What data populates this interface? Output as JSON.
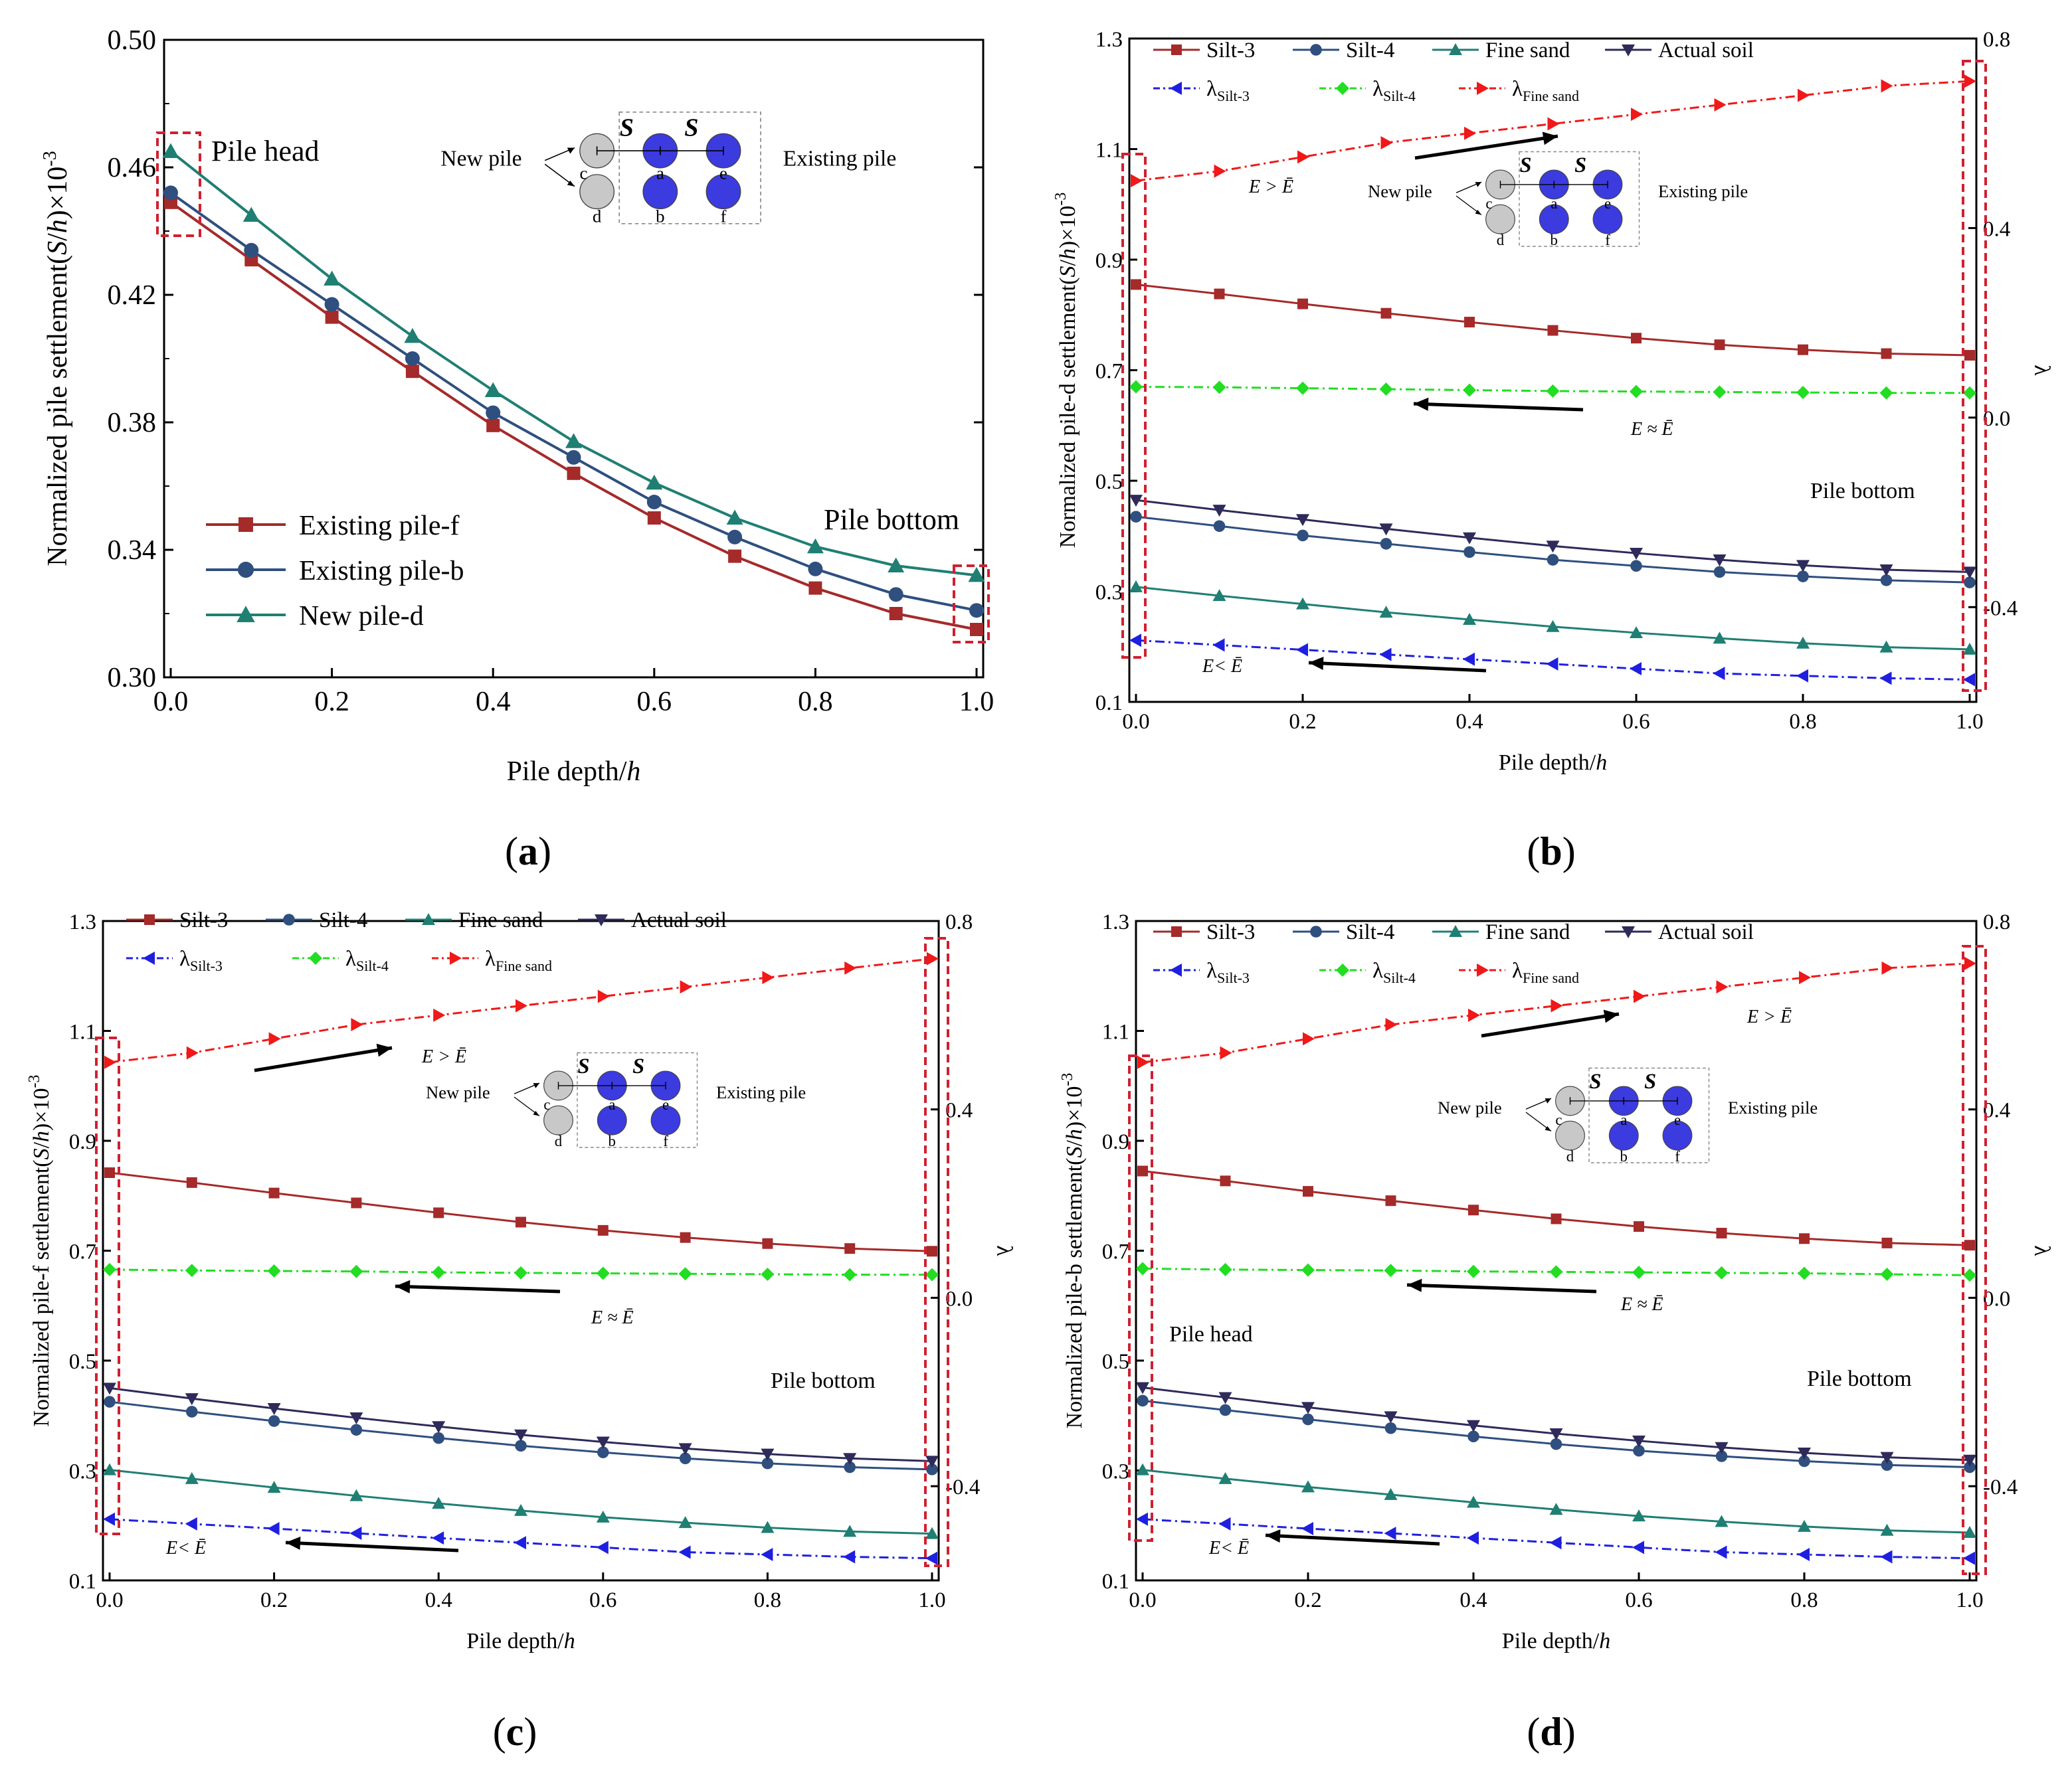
{
  "chart_data": [
    {
      "id": "a",
      "type": "line",
      "caption_letter": "a",
      "xlabel": "Pile depth/",
      "xlabel_italic": "h",
      "ylabel_prefix": "Normalized  pile settlement(",
      "ylabel_S": "S",
      "ylabel_slash": "/",
      "ylabel_h": "h",
      "ylabel_suffix": ")×10",
      "ylabel_exp": "-3",
      "xlim": [
        0,
        1.0
      ],
      "ylim": [
        0.3,
        0.5
      ],
      "xticks": [
        "0.0",
        "0.2",
        "0.4",
        "0.6",
        "0.8",
        "1.0"
      ],
      "yticks": [
        "0.30",
        "0.34",
        "0.38",
        "0.42",
        "0.46",
        "0.50"
      ],
      "x": [
        0,
        0.1,
        0.2,
        0.3,
        0.4,
        0.5,
        0.6,
        0.7,
        0.8,
        0.9,
        1.0
      ],
      "series": [
        {
          "name": "Existing pile-f",
          "color": "#A52A2A",
          "marker": "square",
          "dash": "solid",
          "values": [
            0.449,
            0.431,
            0.413,
            0.396,
            0.379,
            0.364,
            0.35,
            0.338,
            0.328,
            0.32,
            0.315
          ]
        },
        {
          "name": "Existing pile-b",
          "color": "#2F4F7F",
          "marker": "circle",
          "dash": "solid",
          "values": [
            0.452,
            0.434,
            0.417,
            0.4,
            0.383,
            0.369,
            0.355,
            0.344,
            0.334,
            0.326,
            0.321
          ]
        },
        {
          "name": "New pile-d",
          "color": "#1F7F73",
          "marker": "triangle-up",
          "dash": "solid",
          "values": [
            0.465,
            0.445,
            0.425,
            0.407,
            0.39,
            0.374,
            0.361,
            0.35,
            0.341,
            0.335,
            0.332
          ]
        }
      ],
      "annotations": {
        "head": "Pile head",
        "bottom": "Pile bottom"
      },
      "inset": {
        "new_pile": "New pile",
        "existing_pile": "Existing pile",
        "spacing": "S",
        "labels": [
          "c",
          "a",
          "e",
          "d",
          "b",
          "f"
        ]
      }
    },
    {
      "id": "b",
      "type": "line",
      "caption_letter": "b",
      "xlabel": "Pile depth/",
      "xlabel_italic": "h",
      "ylabel_prefix": "Normalized  pile-d settlement(",
      "ylabel_S": "S",
      "ylabel_slash": "/",
      "ylabel_h": "h",
      "ylabel_suffix": ")×10",
      "ylabel_exp": "-3",
      "y2label": "λ",
      "xlim": [
        0,
        1.0
      ],
      "ylim": [
        0.1,
        1.3
      ],
      "y2lim": [
        -0.6,
        0.8
      ],
      "xticks": [
        "0.0",
        "0.2",
        "0.4",
        "0.6",
        "0.8",
        "1.0"
      ],
      "yticks": [
        "0.1",
        "0.3",
        "0.5",
        "0.7",
        "0.9",
        "1.1",
        "1.3"
      ],
      "y2ticks": [
        "-0.4",
        "0.0",
        "0.4",
        "0.8"
      ],
      "x": [
        0,
        0.1,
        0.2,
        0.3,
        0.4,
        0.5,
        0.6,
        0.7,
        0.8,
        0.9,
        1.0
      ],
      "series": [
        {
          "name": "Silt-3",
          "color": "#A52A2A",
          "marker": "square",
          "dash": "solid",
          "axis": "left",
          "values": [
            0.855,
            0.838,
            0.82,
            0.803,
            0.787,
            0.772,
            0.758,
            0.746,
            0.737,
            0.73,
            0.727
          ]
        },
        {
          "name": "Silt-4",
          "color": "#2F4F7F",
          "marker": "circle",
          "dash": "solid",
          "axis": "left",
          "values": [
            0.435,
            0.418,
            0.401,
            0.386,
            0.371,
            0.357,
            0.346,
            0.335,
            0.327,
            0.32,
            0.316
          ]
        },
        {
          "name": "Fine sand",
          "color": "#1F7F73",
          "marker": "triangle-up",
          "dash": "solid",
          "axis": "left",
          "values": [
            0.308,
            0.292,
            0.277,
            0.262,
            0.249,
            0.236,
            0.225,
            0.215,
            0.206,
            0.199,
            0.195
          ]
        },
        {
          "name": "Actual soil",
          "color": "#2E2A5A",
          "marker": "triangle-down",
          "dash": "solid",
          "axis": "left",
          "values": [
            0.465,
            0.447,
            0.43,
            0.413,
            0.397,
            0.382,
            0.369,
            0.357,
            0.347,
            0.339,
            0.335
          ]
        },
        {
          "name": "λ",
          "sub": "Silt-3",
          "color": "#1F1FE0",
          "marker": "triangle-left",
          "dash": "dashdot",
          "axis": "right",
          "values": [
            -0.47,
            -0.48,
            -0.49,
            -0.5,
            -0.51,
            -0.52,
            -0.53,
            -0.54,
            -0.545,
            -0.55,
            -0.553
          ]
        },
        {
          "name": "λ",
          "sub": "Silt-4",
          "color": "#22DD22",
          "marker": "diamond",
          "dash": "dashdot",
          "axis": "right",
          "values": [
            0.065,
            0.064,
            0.062,
            0.06,
            0.058,
            0.056,
            0.055,
            0.054,
            0.053,
            0.052,
            0.052
          ]
        },
        {
          "name": "λ",
          "sub": "Fine sand",
          "color": "#F01818",
          "marker": "triangle-right",
          "dash": "dashdot",
          "axis": "right",
          "values": [
            0.5,
            0.52,
            0.55,
            0.58,
            0.6,
            0.62,
            0.64,
            0.66,
            0.68,
            0.7,
            0.71
          ]
        }
      ],
      "annotations": {
        "bottom": "Pile bottom",
        "gt": "E > Ē",
        "approx": "E ≈ Ē",
        "lt": "E< Ē"
      },
      "inset": {
        "new_pile": "New pile",
        "existing_pile": "Existing pile",
        "spacing": "S",
        "labels": [
          "c",
          "a",
          "e",
          "d",
          "b",
          "f"
        ]
      }
    },
    {
      "id": "c",
      "type": "line",
      "caption_letter": "c",
      "xlabel": "Pile depth/",
      "xlabel_italic": "h",
      "ylabel_prefix": "Normalized  pile-f settlement(",
      "ylabel_S": "S",
      "ylabel_slash": "/",
      "ylabel_h": "h",
      "ylabel_suffix": ")×10",
      "ylabel_exp": "-3",
      "y2label": "λ",
      "xlim": [
        0,
        1.0
      ],
      "ylim": [
        0.1,
        1.3
      ],
      "y2lim": [
        -0.6,
        0.8
      ],
      "xticks": [
        "0.0",
        "0.2",
        "0.4",
        "0.6",
        "0.8",
        "1.0"
      ],
      "yticks": [
        "0.1",
        "0.3",
        "0.5",
        "0.7",
        "0.9",
        "1.1",
        "1.3"
      ],
      "y2ticks": [
        "-0.4",
        "0.0",
        "0.4",
        "0.8"
      ],
      "x": [
        0,
        0.1,
        0.2,
        0.3,
        0.4,
        0.5,
        0.6,
        0.7,
        0.8,
        0.9,
        1.0
      ],
      "series": [
        {
          "name": "Silt-3",
          "color": "#A52A2A",
          "marker": "square",
          "dash": "solid",
          "axis": "left",
          "values": [
            0.842,
            0.824,
            0.805,
            0.787,
            0.769,
            0.752,
            0.737,
            0.724,
            0.713,
            0.704,
            0.699
          ]
        },
        {
          "name": "Silt-4",
          "color": "#2F4F7F",
          "marker": "circle",
          "dash": "solid",
          "axis": "left",
          "values": [
            0.425,
            0.407,
            0.39,
            0.374,
            0.359,
            0.345,
            0.333,
            0.322,
            0.313,
            0.306,
            0.302
          ]
        },
        {
          "name": "Fine sand",
          "color": "#1F7F73",
          "marker": "triangle-up",
          "dash": "solid",
          "axis": "left",
          "values": [
            0.301,
            0.285,
            0.269,
            0.254,
            0.24,
            0.227,
            0.215,
            0.205,
            0.196,
            0.189,
            0.185
          ]
        },
        {
          "name": "Actual soil",
          "color": "#2E2A5A",
          "marker": "triangle-down",
          "dash": "solid",
          "axis": "left",
          "values": [
            0.45,
            0.431,
            0.413,
            0.396,
            0.38,
            0.365,
            0.352,
            0.34,
            0.33,
            0.322,
            0.317
          ]
        },
        {
          "name": "λ",
          "sub": "Silt-3",
          "color": "#1F1FE0",
          "marker": "triangle-left",
          "dash": "dashdot",
          "axis": "right",
          "values": [
            -0.47,
            -0.48,
            -0.49,
            -0.5,
            -0.51,
            -0.52,
            -0.53,
            -0.54,
            -0.545,
            -0.55,
            -0.553
          ]
        },
        {
          "name": "λ",
          "sub": "Silt-4",
          "color": "#22DD22",
          "marker": "diamond",
          "dash": "dashdot",
          "axis": "right",
          "values": [
            0.06,
            0.058,
            0.057,
            0.056,
            0.054,
            0.053,
            0.052,
            0.051,
            0.05,
            0.049,
            0.049
          ]
        },
        {
          "name": "λ",
          "sub": "Fine sand",
          "color": "#F01818",
          "marker": "triangle-right",
          "dash": "dashdot",
          "axis": "right",
          "values": [
            0.5,
            0.52,
            0.55,
            0.58,
            0.6,
            0.62,
            0.64,
            0.66,
            0.68,
            0.7,
            0.72
          ]
        }
      ],
      "annotations": {
        "bottom": "Pile bottom",
        "gt": "E > Ē",
        "approx": "E ≈ Ē",
        "lt": "E< Ē"
      },
      "inset": {
        "new_pile": "New pile",
        "existing_pile": "Existing pile",
        "spacing": "S",
        "labels": [
          "c",
          "a",
          "e",
          "d",
          "b",
          "f"
        ]
      }
    },
    {
      "id": "d",
      "type": "line",
      "caption_letter": "d",
      "xlabel": "Pile depth/",
      "xlabel_italic": "h",
      "ylabel_prefix": "Normalized  pile-b settlement(",
      "ylabel_S": "S",
      "ylabel_slash": "/",
      "ylabel_h": "h",
      "ylabel_suffix": ")×10",
      "ylabel_exp": "-3",
      "y2label": "λ",
      "xlim": [
        0,
        1.0
      ],
      "ylim": [
        0.1,
        1.3
      ],
      "y2lim": [
        -0.6,
        0.8
      ],
      "xticks": [
        "0.0",
        "0.2",
        "0.4",
        "0.6",
        "0.8",
        "1.0"
      ],
      "yticks": [
        "0.1",
        "0.3",
        "0.5",
        "0.7",
        "0.9",
        "1.1",
        "1.3"
      ],
      "y2ticks": [
        "-0.4",
        "0.0",
        "0.4",
        "0.8"
      ],
      "x": [
        0,
        0.1,
        0.2,
        0.3,
        0.4,
        0.5,
        0.6,
        0.7,
        0.8,
        0.9,
        1.0
      ],
      "series": [
        {
          "name": "Silt-3",
          "color": "#A52A2A",
          "marker": "square",
          "dash": "solid",
          "axis": "left",
          "values": [
            0.845,
            0.827,
            0.808,
            0.791,
            0.774,
            0.758,
            0.744,
            0.732,
            0.722,
            0.714,
            0.71
          ]
        },
        {
          "name": "Silt-4",
          "color": "#2F4F7F",
          "marker": "circle",
          "dash": "solid",
          "axis": "left",
          "values": [
            0.427,
            0.41,
            0.393,
            0.377,
            0.362,
            0.348,
            0.336,
            0.326,
            0.317,
            0.31,
            0.306
          ]
        },
        {
          "name": "Fine sand",
          "color": "#1F7F73",
          "marker": "triangle-up",
          "dash": "solid",
          "axis": "left",
          "values": [
            0.301,
            0.285,
            0.27,
            0.256,
            0.242,
            0.229,
            0.217,
            0.207,
            0.198,
            0.191,
            0.187
          ]
        },
        {
          "name": "Actual soil",
          "color": "#2E2A5A",
          "marker": "triangle-down",
          "dash": "solid",
          "axis": "left",
          "values": [
            0.451,
            0.433,
            0.415,
            0.398,
            0.382,
            0.367,
            0.354,
            0.342,
            0.332,
            0.324,
            0.319
          ]
        },
        {
          "name": "λ",
          "sub": "Silt-3",
          "color": "#1F1FE0",
          "marker": "triangle-left",
          "dash": "dashdot",
          "axis": "right",
          "values": [
            -0.47,
            -0.48,
            -0.49,
            -0.5,
            -0.51,
            -0.52,
            -0.53,
            -0.54,
            -0.545,
            -0.55,
            -0.553
          ]
        },
        {
          "name": "λ",
          "sub": "Silt-4",
          "color": "#22DD22",
          "marker": "diamond",
          "dash": "dashdot",
          "axis": "right",
          "values": [
            0.062,
            0.06,
            0.059,
            0.058,
            0.056,
            0.055,
            0.054,
            0.053,
            0.052,
            0.05,
            0.048
          ]
        },
        {
          "name": "λ",
          "sub": "Fine sand",
          "color": "#F01818",
          "marker": "triangle-right",
          "dash": "dashdot",
          "axis": "right",
          "values": [
            0.5,
            0.52,
            0.55,
            0.58,
            0.6,
            0.62,
            0.64,
            0.66,
            0.68,
            0.7,
            0.71
          ]
        }
      ],
      "annotations": {
        "head": "Pile head",
        "bottom": "Pile bottom",
        "gt": "E > Ē",
        "approx": "E ≈ Ē",
        "lt": "E< Ē"
      },
      "inset": {
        "new_pile": "New pile",
        "existing_pile": "Existing pile",
        "spacing": "S",
        "labels": [
          "c",
          "a",
          "e",
          "d",
          "b",
          "f"
        ]
      }
    }
  ]
}
